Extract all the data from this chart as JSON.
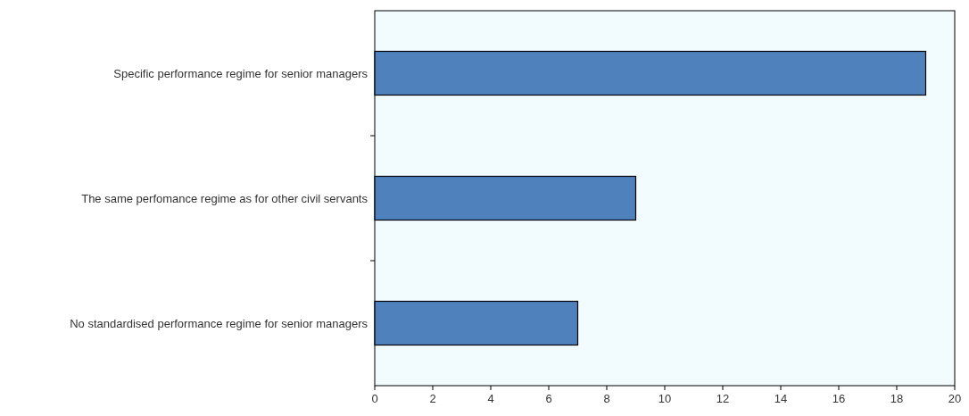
{
  "chart_data": {
    "type": "bar",
    "orientation": "horizontal",
    "categories": [
      "Specific performance regime for senior managers",
      "The same perfomance regime as for other civil servants",
      "No standardised performance regime for senior managers"
    ],
    "values": [
      19,
      9,
      7
    ],
    "color": "#4f81bd",
    "xlim": [
      0,
      20
    ],
    "xticks": [
      0,
      2,
      4,
      6,
      8,
      10,
      12,
      14,
      16,
      18,
      20
    ]
  }
}
